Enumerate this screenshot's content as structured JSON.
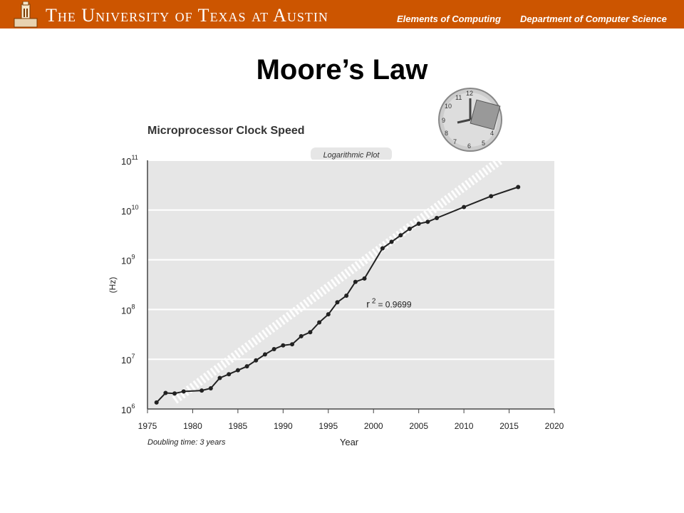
{
  "header": {
    "university": "The University of Texas at Austin",
    "course": "Elements of Computing",
    "department": "Department of Computer Science"
  },
  "slide": {
    "title": "Moore’s Law"
  },
  "chart_data": {
    "type": "line",
    "title": "Microprocessor Clock Speed",
    "badge": "Logarithmic Plot",
    "xlabel": "Year",
    "ylabel": "(Hz)",
    "xlim": [
      1975,
      2020
    ],
    "ylim_log10": [
      6,
      11
    ],
    "y_scale": "log",
    "grid": "horizontal",
    "x_ticks": [
      1975,
      1980,
      1985,
      1990,
      1995,
      2000,
      2005,
      2010,
      2015,
      2020
    ],
    "y_ticks": [
      {
        "base": "10",
        "exp": "6",
        "value": 1000000
      },
      {
        "base": "10",
        "exp": "7",
        "value": 10000000
      },
      {
        "base": "10",
        "exp": "8",
        "value": 100000000
      },
      {
        "base": "10",
        "exp": "9",
        "value": 1000000000
      },
      {
        "base": "10",
        "exp": "10",
        "value": 10000000000
      },
      {
        "base": "10",
        "exp": "11",
        "value": 100000000000
      }
    ],
    "series": [
      {
        "values": [
          {
            "x": 1976,
            "y": 1350000
          },
          {
            "x": 1977,
            "y": 2100000
          },
          {
            "x": 1978,
            "y": 2050000
          },
          {
            "x": 1979,
            "y": 2250000
          },
          {
            "x": 1981,
            "y": 2350000
          },
          {
            "x": 1982,
            "y": 2600000
          },
          {
            "x": 1983,
            "y": 4200000
          },
          {
            "x": 1984,
            "y": 5000000
          },
          {
            "x": 1985,
            "y": 6000000
          },
          {
            "x": 1986,
            "y": 7200000
          },
          {
            "x": 1987,
            "y": 9500000
          },
          {
            "x": 1988,
            "y": 12500000
          },
          {
            "x": 1989,
            "y": 16000000
          },
          {
            "x": 1990,
            "y": 19000000
          },
          {
            "x": 1991,
            "y": 20000000
          },
          {
            "x": 1992,
            "y": 29000000
          },
          {
            "x": 1993,
            "y": 35000000
          },
          {
            "x": 1994,
            "y": 55000000
          },
          {
            "x": 1995,
            "y": 80000000
          },
          {
            "x": 1996,
            "y": 140000000
          },
          {
            "x": 1997,
            "y": 190000000
          },
          {
            "x": 1998,
            "y": 360000000
          },
          {
            "x": 1999,
            "y": 420000000
          },
          {
            "x": 2001,
            "y": 1700000000
          },
          {
            "x": 2002,
            "y": 2300000000
          },
          {
            "x": 2003,
            "y": 3100000000
          },
          {
            "x": 2004,
            "y": 4200000000
          },
          {
            "x": 2005,
            "y": 5300000000
          },
          {
            "x": 2006,
            "y": 5800000000
          },
          {
            "x": 2007,
            "y": 6900000000
          },
          {
            "x": 2010,
            "y": 11500000000
          },
          {
            "x": 2013,
            "y": 19000000000
          },
          {
            "x": 2016,
            "y": 29000000000
          }
        ]
      }
    ],
    "trend": {
      "x": [
        1978,
        2014
      ],
      "y": [
        1500000,
        100000000000
      ]
    },
    "annotation": {
      "r": "r",
      "sup": "2",
      "eq": "= 0.9699",
      "x": 2000,
      "y": 130000000
    },
    "footnote": "Doubling time: 3 years",
    "colors": {
      "plot_bg": "#e6e6e6",
      "line": "#222222",
      "grid": "#ffffff",
      "trend": "#ffffff",
      "header": "#cc5500"
    }
  }
}
